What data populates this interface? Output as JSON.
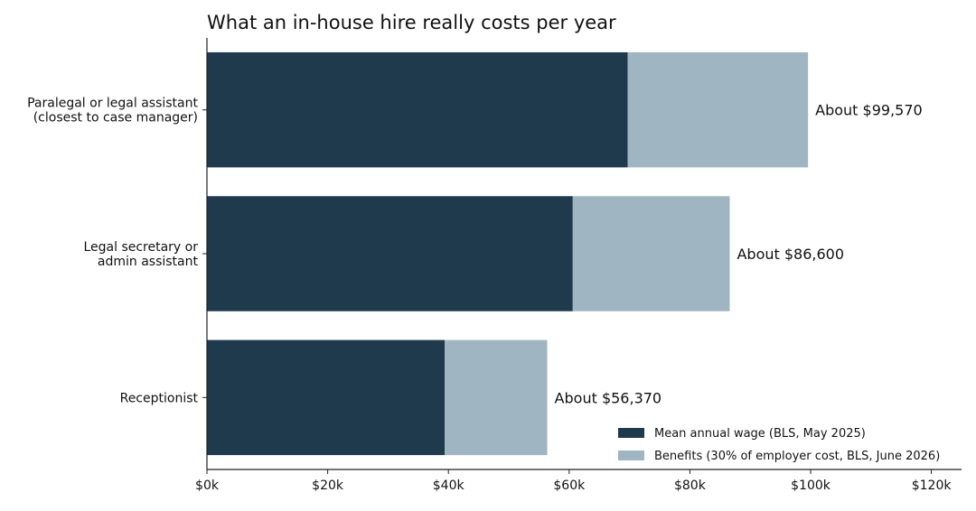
{
  "chart_data": {
    "type": "bar",
    "orientation": "horizontal",
    "stacked": true,
    "title": "What an in-house hire really costs per year",
    "xlabel": "",
    "ylabel": "",
    "categories": [
      [
        "Paralegal or legal assistant",
        "(closest to case manager)"
      ],
      [
        "Legal secretary or",
        "admin assistant"
      ],
      [
        "Receptionist"
      ]
    ],
    "series": [
      {
        "name": "Mean annual wage (BLS, May 2025)",
        "color": "#1f3a4d",
        "values": [
          69700,
          60600,
          39400
        ]
      },
      {
        "name": "Benefits (30% of employer cost, BLS, June 2026)",
        "color": "#9fb6c2",
        "values": [
          29870,
          26000,
          16970
        ]
      }
    ],
    "totals_labels": [
      "About $99,570",
      "About $86,600",
      "About $56,370"
    ],
    "xlim": [
      0,
      125000
    ],
    "xticks": [
      0,
      20000,
      40000,
      60000,
      80000,
      100000,
      120000
    ],
    "xtick_labels": [
      "$0k",
      "$20k",
      "$40k",
      "$60k",
      "$80k",
      "$100k",
      "$120k"
    ],
    "grid": false,
    "legend_position": "bottom-right"
  }
}
